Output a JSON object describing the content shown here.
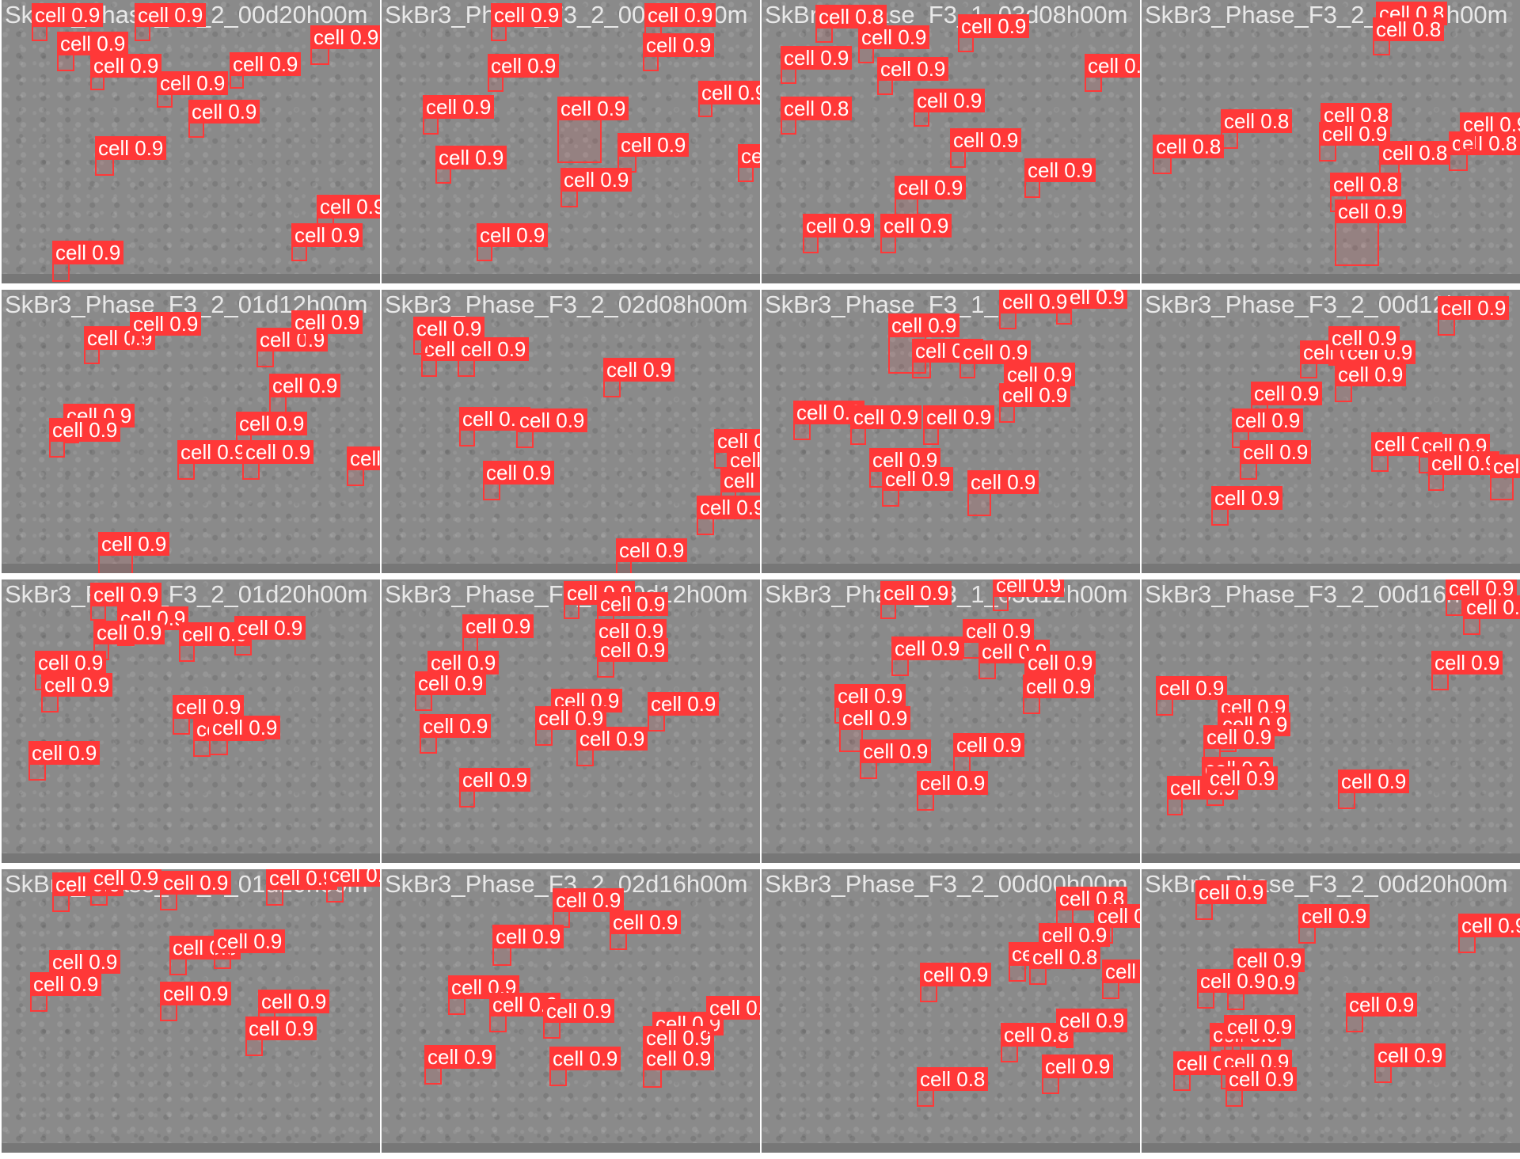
{
  "tiles": [
    {
      "title": "SkBr3_Phase_F3_2_00d20h00m",
      "detections": [
        {
          "label": "cell 0.9"
        },
        {
          "label": "cell 0.9"
        },
        {
          "label": "cell 0.9"
        },
        {
          "label": "cell 0.9"
        },
        {
          "label": "cell 0.9"
        },
        {
          "label": "cell 0.9"
        },
        {
          "label": "cell 0.9"
        },
        {
          "label": "cell 0.9"
        },
        {
          "label": "cell 0.9"
        },
        {
          "label": "cell 0.9"
        },
        {
          "label": "cell 0.9"
        },
        {
          "label": "cell 0.9"
        }
      ]
    },
    {
      "title": "SkBr3_Phase_F3_2_00d20h00m",
      "detections": [
        {
          "label": "cell 0.9"
        },
        {
          "label": "cell 0.9"
        },
        {
          "label": "cell 0.9"
        },
        {
          "label": "cell 0.9"
        },
        {
          "label": "cell 0.9"
        },
        {
          "label": "cell 0.9"
        },
        {
          "label": "cell 0.9"
        },
        {
          "label": "cell 0.9"
        },
        {
          "label": "cell 0.9"
        },
        {
          "label": "cell 0.9"
        },
        {
          "label": "cell 0.9"
        },
        {
          "label": "cell 0.9"
        }
      ]
    },
    {
      "title": "SkBr3_Phase_F3_1_03d08h00m",
      "detections": [
        {
          "label": "cell 0.8"
        },
        {
          "label": "cell 0.9"
        },
        {
          "label": "cell 0.9"
        },
        {
          "label": "cell 0.9"
        },
        {
          "label": "cell 0.9"
        },
        {
          "label": "cell 0.9"
        },
        {
          "label": "cell 0.8"
        },
        {
          "label": "cell 0.9"
        },
        {
          "label": "cell 0.9"
        },
        {
          "label": "cell 0.9"
        },
        {
          "label": "cell 0.9"
        },
        {
          "label": "cell 0.9"
        },
        {
          "label": "cell 0.9"
        }
      ]
    },
    {
      "title": "SkBr3_Phase_F3_2_00d12h00m",
      "detections": [
        {
          "label": "cell 0.8"
        },
        {
          "label": "cell 0.8"
        },
        {
          "label": "cell 0.8"
        },
        {
          "label": "cell 0.8"
        },
        {
          "label": "cell 0.8"
        },
        {
          "label": "cell 0.9"
        },
        {
          "label": "cell 0.8"
        },
        {
          "label": "cell 0.8"
        },
        {
          "label": "cell 0.8"
        },
        {
          "label": "cell 0.9"
        },
        {
          "label": "cell 0.9"
        }
      ]
    },
    {
      "title": "SkBr3_Phase_F3_2_01d12h00m",
      "detections": [
        {
          "label": "cell 0.9"
        },
        {
          "label": "cell 0.9"
        },
        {
          "label": "cell 0.9"
        },
        {
          "label": "cell 0.9"
        },
        {
          "label": "cell 0.9"
        },
        {
          "label": "cell 0.9"
        },
        {
          "label": "cell 0.9"
        },
        {
          "label": "cell 0.9"
        },
        {
          "label": "cell 0.9"
        },
        {
          "label": "cell 0.9"
        },
        {
          "label": "cell 0.9"
        },
        {
          "label": "cell 0.9"
        }
      ]
    },
    {
      "title": "SkBr3_Phase_F3_2_02d08h00m",
      "detections": [
        {
          "label": "cell 0.9"
        },
        {
          "label": "cell 0.9"
        },
        {
          "label": "cell 0.9"
        },
        {
          "label": "cell 0.9"
        },
        {
          "label": "cell 0.9"
        },
        {
          "label": "cell 0.9"
        },
        {
          "label": "cell 0.9"
        },
        {
          "label": "cell 0.9"
        },
        {
          "label": "cell 0.9"
        },
        {
          "label": "cell 0.9"
        },
        {
          "label": "cell 0.9"
        },
        {
          "label": "cell 0.9"
        }
      ]
    },
    {
      "title": "SkBr3_Phase_F3_1_03d",
      "detections": [
        {
          "label": "cell 0.9"
        },
        {
          "label": "cell 0.9"
        },
        {
          "label": "cell 0.9"
        },
        {
          "label": "cell 0.9"
        },
        {
          "label": "cell 0.9"
        },
        {
          "label": "cell 0.9"
        },
        {
          "label": "cell 0.9"
        },
        {
          "label": "cell 0.9"
        },
        {
          "label": "cell 0.9"
        },
        {
          "label": "cell 0.9"
        },
        {
          "label": "cell 0.9"
        },
        {
          "label": "cell 0.9"
        },
        {
          "label": "cell 0.9"
        }
      ]
    },
    {
      "title": "SkBr3_Phase_F3_2_00d12h00m",
      "detections": [
        {
          "label": "cell 0.9"
        },
        {
          "label": "cell 0.9"
        },
        {
          "label": "cell 0.9"
        },
        {
          "label": "cell 0.9"
        },
        {
          "label": "cell 0.9"
        },
        {
          "label": "cell 0.9"
        },
        {
          "label": "cell 0.9"
        },
        {
          "label": "cell 0.9"
        },
        {
          "label": "cell 0.9"
        },
        {
          "label": "cell 0.9"
        },
        {
          "label": "cell 0.9"
        },
        {
          "label": "cell 0.9"
        },
        {
          "label": "cell 0.9"
        }
      ]
    },
    {
      "title": "SkBr3_Phase_F3_2_01d20h00m",
      "detections": [
        {
          "label": "cell 0.9"
        },
        {
          "label": "cell 0.9"
        },
        {
          "label": "cell 0.9"
        },
        {
          "label": "cell 0.9"
        },
        {
          "label": "cell 0.9"
        },
        {
          "label": "cell 0.9"
        },
        {
          "label": "cell 0.9"
        },
        {
          "label": "cell 0.9"
        },
        {
          "label": "cell 0.9"
        },
        {
          "label": "cell 0.9"
        },
        {
          "label": "cell 0.9"
        }
      ]
    },
    {
      "title": "SkBr3_Phase_F3_2_00d12h00m",
      "detections": [
        {
          "label": "cell 0.9"
        },
        {
          "label": "cell 0.9"
        },
        {
          "label": "cell 0.9"
        },
        {
          "label": "cell 0.9"
        },
        {
          "label": "cell 0.9"
        },
        {
          "label": "cell 0.9"
        },
        {
          "label": "cell 0.9"
        },
        {
          "label": "cell 0.9"
        },
        {
          "label": "cell 0.9"
        },
        {
          "label": "cell 0.9"
        },
        {
          "label": "cell 0.9"
        },
        {
          "label": "cell 0.9"
        },
        {
          "label": "cell 0.9"
        }
      ]
    },
    {
      "title": "SkBr3_Phase_F3_1_03d12h00m",
      "detections": [
        {
          "label": "cell 0.9"
        },
        {
          "label": "cell 0.9"
        },
        {
          "label": "cell 0.9"
        },
        {
          "label": "cell 0.9"
        },
        {
          "label": "cell 0.9"
        },
        {
          "label": "cell 0.9"
        },
        {
          "label": "cell 0.9"
        },
        {
          "label": "cell 0.9"
        },
        {
          "label": "cell 0.9"
        },
        {
          "label": "cell 0.9"
        },
        {
          "label": "cell 0.9"
        },
        {
          "label": "cell 0.9"
        }
      ]
    },
    {
      "title": "SkBr3_Phase_F3_2_00d16h00m",
      "detections": [
        {
          "label": "cell 0.9"
        },
        {
          "label": "cell 0.9"
        },
        {
          "label": "cell 0.9"
        },
        {
          "label": "cell 0.9"
        },
        {
          "label": "cell 0.9"
        },
        {
          "label": "cell 0.9"
        },
        {
          "label": "cell 0.9"
        },
        {
          "label": "cell 0.9"
        },
        {
          "label": "cell 0.9"
        },
        {
          "label": "cell 0.9"
        },
        {
          "label": "cell 0.9"
        }
      ]
    },
    {
      "title": "SkBr3_Phase_F3_2_01d20h00m",
      "detections": [
        {
          "label": "cell 0.9"
        },
        {
          "label": "cell 0.9"
        },
        {
          "label": "cell 0.9"
        },
        {
          "label": "cell 0.9"
        },
        {
          "label": "cell 0.9"
        },
        {
          "label": "cell 0.9"
        },
        {
          "label": "cell 0.9"
        },
        {
          "label": "cell 0.9"
        },
        {
          "label": "cell 0.9"
        },
        {
          "label": "cell 0.9"
        },
        {
          "label": "cell 0.9"
        },
        {
          "label": "cell 0.9"
        }
      ]
    },
    {
      "title": "SkBr3_Phase_F3_2_02d16h00m",
      "detections": [
        {
          "label": "cell 0.9"
        },
        {
          "label": "cell 0.9"
        },
        {
          "label": "cell 0.9"
        },
        {
          "label": "cell 0.9"
        },
        {
          "label": "cell 0.9"
        },
        {
          "label": "cell 0.9"
        },
        {
          "label": "cell 0.9"
        },
        {
          "label": "cell 0.9"
        },
        {
          "label": "cell 0.9"
        },
        {
          "label": "cell 0.9"
        },
        {
          "label": "cell 0.9"
        },
        {
          "label": "cell 0.9"
        }
      ]
    },
    {
      "title": "SkBr3_Phase_F3_2_00d00h00m",
      "detections": [
        {
          "label": "cell 0.8"
        },
        {
          "label": "cell 0.8"
        },
        {
          "label": "cell 0.9"
        },
        {
          "label": "cell 0.8"
        },
        {
          "label": "cell 0.8"
        },
        {
          "label": "cell 0.9"
        },
        {
          "label": "cell 0.9"
        },
        {
          "label": "cell 0.8"
        },
        {
          "label": "cell 0.9"
        },
        {
          "label": "cell 0.9"
        },
        {
          "label": "cell 0.8"
        }
      ]
    },
    {
      "title": "SkBr3_Phase_F3_2_00d20h00m",
      "detections": [
        {
          "label": "cell 0.9"
        },
        {
          "label": "cell 0.9"
        },
        {
          "label": "cell 0.9"
        },
        {
          "label": "cell 0.9"
        },
        {
          "label": "cell 0.9"
        },
        {
          "label": "cell 0.9"
        },
        {
          "label": "cell 0.9"
        },
        {
          "label": "cell 0.9"
        },
        {
          "label": "cell 0.9"
        },
        {
          "label": "cell 0.9"
        },
        {
          "label": "cell 0.9"
        },
        {
          "label": "cell 0.9"
        },
        {
          "label": "cell 0.9"
        }
      ]
    }
  ],
  "colors": {
    "box": "#ff3838",
    "label_text": "#ffffff",
    "title_text": "#e8e8e8",
    "tile_bg": "#8a8a8a"
  }
}
